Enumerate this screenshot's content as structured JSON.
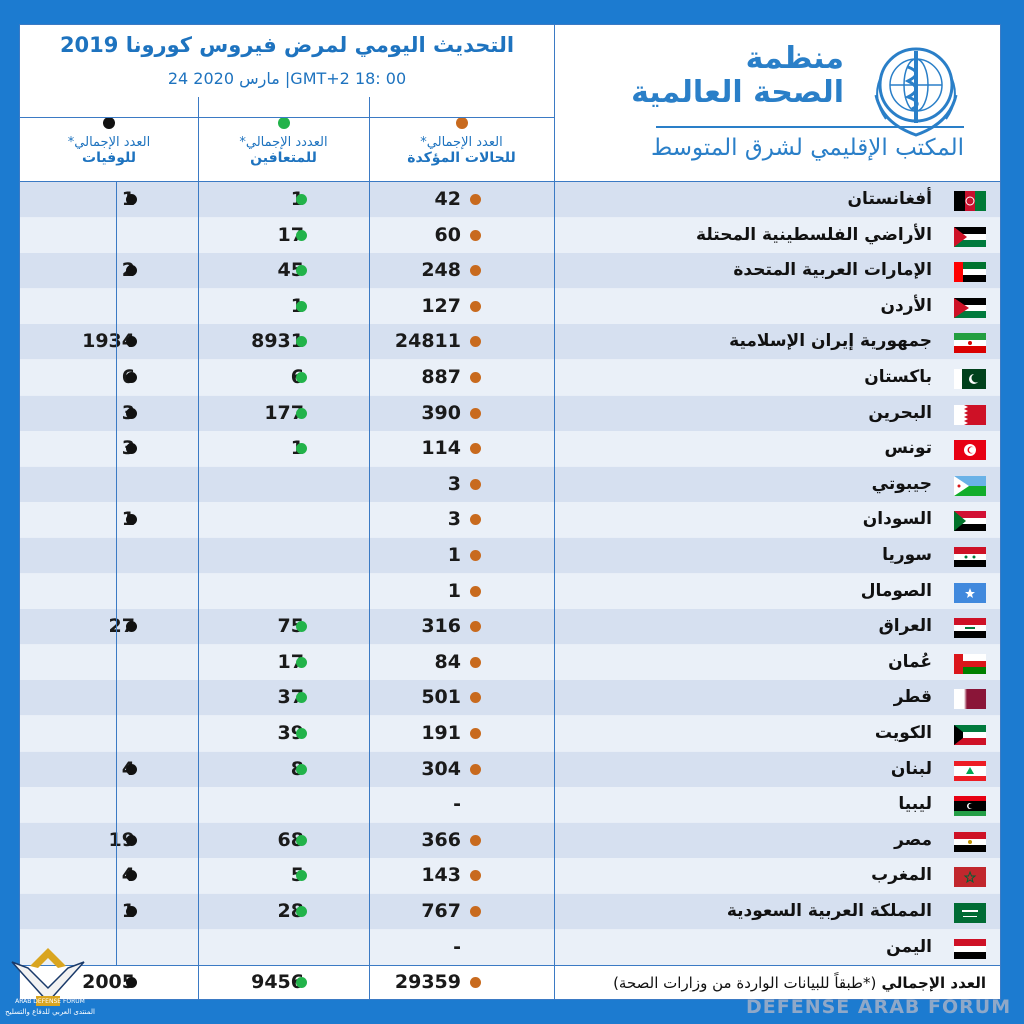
{
  "header": {
    "title": "التحديث اليومي لمرض فيروس كورونا 2019",
    "subtitle": "24 مارس 2020  |GMT+2  18: 00",
    "org_line1": "منظمة",
    "org_line2": "الصحة العالمية",
    "org_sub": "المكتب الإقليمي لشرق المتوسط"
  },
  "columns": {
    "confirmed": {
      "line1": "العدد الإجمالي*",
      "line2": "للحالات المؤكدة"
    },
    "recovered": {
      "line1": "العددد الإجمالي*",
      "line2": "للمتعافين"
    },
    "deaths": {
      "line1": "العدد الإجمالي*",
      "line2": "للوفيات"
    }
  },
  "colors": {
    "confirmed": "#c86a1e",
    "recovered": "#22b34a",
    "deaths": "#111111",
    "accent": "#1e73bf"
  },
  "rows": [
    {
      "country": "أفغانستان",
      "flag": "afghanistan-flag",
      "confirmed": "42",
      "recovered": "1",
      "deaths": "1"
    },
    {
      "country": "الأراضي الفلسطينية المحتلة",
      "flag": "palestine-flag",
      "confirmed": "60",
      "recovered": "17",
      "deaths": ""
    },
    {
      "country": "الإمارات العربية المتحدة",
      "flag": "uae-flag",
      "confirmed": "248",
      "recovered": "45",
      "deaths": "2"
    },
    {
      "country": "الأردن",
      "flag": "jordan-flag",
      "confirmed": "127",
      "recovered": "1",
      "deaths": ""
    },
    {
      "country": "جمهورية إيران الإسلامية",
      "flag": "iran-flag",
      "confirmed": "24811",
      "recovered": "8931",
      "deaths": "1934"
    },
    {
      "country": "باكستان",
      "flag": "pakistan-flag",
      "confirmed": "887",
      "recovered": "6",
      "deaths": "6"
    },
    {
      "country": "البحرين",
      "flag": "bahrain-flag",
      "confirmed": "390",
      "recovered": "177",
      "deaths": "3"
    },
    {
      "country": "تونس",
      "flag": "tunisia-flag",
      "confirmed": "114",
      "recovered": "1",
      "deaths": "3"
    },
    {
      "country": "جيبوتي",
      "flag": "djibouti-flag",
      "confirmed": "3",
      "recovered": "",
      "deaths": ""
    },
    {
      "country": "السودان",
      "flag": "sudan-flag",
      "confirmed": "3",
      "recovered": "",
      "deaths": "1"
    },
    {
      "country": "سوريا",
      "flag": "syria-flag",
      "confirmed": "1",
      "recovered": "",
      "deaths": ""
    },
    {
      "country": "الصومال",
      "flag": "somalia-flag",
      "confirmed": "1",
      "recovered": "",
      "deaths": ""
    },
    {
      "country": "العراق",
      "flag": "iraq-flag",
      "confirmed": "316",
      "recovered": "75",
      "deaths": "27"
    },
    {
      "country": "عُمان",
      "flag": "oman-flag",
      "confirmed": "84",
      "recovered": "17",
      "deaths": ""
    },
    {
      "country": "قطر",
      "flag": "qatar-flag",
      "confirmed": "501",
      "recovered": "37",
      "deaths": ""
    },
    {
      "country": "الكويت",
      "flag": "kuwait-flag",
      "confirmed": "191",
      "recovered": "39",
      "deaths": ""
    },
    {
      "country": "لبنان",
      "flag": "lebanon-flag",
      "confirmed": "304",
      "recovered": "8",
      "deaths": "4"
    },
    {
      "country": "ليبيا",
      "flag": "libya-flag",
      "confirmed": "-",
      "recovered": "",
      "deaths": ""
    },
    {
      "country": "مصر",
      "flag": "egypt-flag",
      "confirmed": "366",
      "recovered": "68",
      "deaths": "19"
    },
    {
      "country": "المغرب",
      "flag": "morocco-flag",
      "confirmed": "143",
      "recovered": "5",
      "deaths": "4"
    },
    {
      "country": "المملكة العربية السعودية",
      "flag": "saudi-flag",
      "confirmed": "767",
      "recovered": "28",
      "deaths": "1"
    },
    {
      "country": "اليمن",
      "flag": "yemen-flag",
      "confirmed": "-",
      "recovered": "",
      "deaths": ""
    }
  ],
  "total": {
    "label": "العدد الإجمالي",
    "note": "(*طبقاً للبيانات الواردة من وزارات الصحة)",
    "confirmed": "29359",
    "recovered": "9456",
    "deaths": "2005"
  },
  "watermark": {
    "forum": "DEFENSE ARAB FORUM",
    "badge_en": "ARAB DEFENSE FORUM",
    "badge_ar": "المنتدى العربي للدفاع والتسليح"
  }
}
